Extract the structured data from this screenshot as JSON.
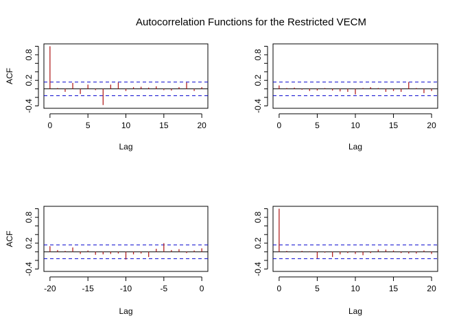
{
  "title": "Autocorrelation Functions for the Restricted VECM",
  "colors": {
    "bar": "#b22222",
    "ci": "#0000cd",
    "axis": "#000000",
    "background": "#ffffff"
  },
  "chart_data": [
    {
      "type": "bar",
      "panel": "top-left",
      "xlabel": "Lag",
      "ylabel": "ACF",
      "xlim": [
        0,
        20
      ],
      "ylim": [
        -0.4,
        1.0
      ],
      "xticks": [
        "0",
        "5",
        "10",
        "15",
        "20"
      ],
      "yticks": [
        "-0.4",
        "0.2",
        "0.8"
      ],
      "ci": [
        0.16,
        -0.16
      ],
      "x": [
        0,
        1,
        2,
        3,
        4,
        5,
        6,
        7,
        8,
        9,
        10,
        11,
        12,
        13,
        14,
        15,
        16,
        17,
        18,
        19,
        20
      ],
      "values": [
        1.0,
        0.02,
        -0.07,
        0.14,
        -0.12,
        0.1,
        -0.03,
        -0.38,
        0.1,
        0.15,
        -0.05,
        0.04,
        0.05,
        0.03,
        0.06,
        -0.03,
        -0.04,
        0.04,
        0.15,
        -0.05,
        0.04
      ]
    },
    {
      "type": "bar",
      "panel": "top-right",
      "xlabel": "Lag",
      "ylabel": "",
      "xlim": [
        0,
        20
      ],
      "ylim": [
        -0.4,
        1.0
      ],
      "xticks": [
        "0",
        "5",
        "10",
        "15",
        "20"
      ],
      "yticks": [
        "-0.4",
        "0.2",
        "0.8"
      ],
      "ci": [
        0.16,
        -0.16
      ],
      "x": [
        0,
        1,
        2,
        3,
        4,
        5,
        6,
        7,
        8,
        9,
        10,
        11,
        12,
        13,
        14,
        15,
        16,
        17,
        18,
        19,
        20
      ],
      "values": [
        0.08,
        0.02,
        0.03,
        -0.02,
        -0.05,
        -0.04,
        0.02,
        -0.04,
        -0.06,
        -0.07,
        -0.13,
        0.02,
        0.04,
        0.02,
        -0.07,
        -0.05,
        -0.07,
        0.16,
        0.02,
        -0.1,
        -0.05
      ]
    },
    {
      "type": "bar",
      "panel": "bottom-left",
      "xlabel": "Lag",
      "ylabel": "ACF",
      "xlim": [
        -20,
        0
      ],
      "ylim": [
        -0.4,
        1.0
      ],
      "xticks": [
        "-20",
        "-15",
        "-10",
        "-5",
        "0"
      ],
      "yticks": [
        "-0.4",
        "0.2",
        "0.8"
      ],
      "ci": [
        0.16,
        -0.16
      ],
      "x": [
        -20,
        -19,
        -18,
        -17,
        -16,
        -15,
        -14,
        -13,
        -12,
        -11,
        -10,
        -9,
        -8,
        -7,
        -6,
        -5,
        -4,
        -3,
        -2,
        -1,
        0
      ],
      "values": [
        0.13,
        0.04,
        0.02,
        0.1,
        -0.05,
        0.03,
        -0.07,
        -0.06,
        -0.05,
        -0.04,
        -0.18,
        -0.06,
        -0.04,
        -0.12,
        0.07,
        0.2,
        0.04,
        0.06,
        -0.03,
        0.03,
        0.08
      ]
    },
    {
      "type": "bar",
      "panel": "bottom-right",
      "xlabel": "Lag",
      "ylabel": "",
      "xlim": [
        0,
        20
      ],
      "ylim": [
        -0.4,
        1.0
      ],
      "xticks": [
        "0",
        "5",
        "10",
        "15",
        "20"
      ],
      "yticks": [
        "-0.4",
        "0.2",
        "0.8"
      ],
      "ci": [
        0.16,
        -0.16
      ],
      "x": [
        0,
        1,
        2,
        3,
        4,
        5,
        6,
        7,
        8,
        9,
        10,
        11,
        12,
        13,
        14,
        15,
        16,
        17,
        18,
        19,
        20
      ],
      "values": [
        1.0,
        0.02,
        0.01,
        0.02,
        0.01,
        -0.15,
        -0.02,
        -0.12,
        -0.06,
        -0.03,
        -0.05,
        -0.08,
        -0.03,
        0.05,
        0.05,
        0.03,
        -0.03,
        -0.04,
        -0.04,
        0.03,
        -0.05
      ]
    }
  ]
}
